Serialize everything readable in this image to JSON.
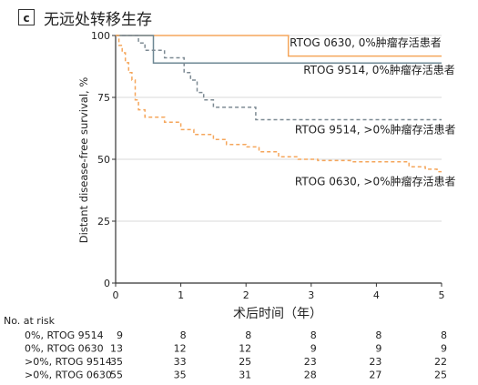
{
  "panel": {
    "letter": "c",
    "title": "无远处转移生存"
  },
  "chart_data": {
    "type": "line",
    "step": true,
    "xlabel": "术后时间（年）",
    "ylabel": "Distant disease-free survival, %",
    "xlim": [
      0,
      5
    ],
    "ylim": [
      0,
      100
    ],
    "xticks": [
      0,
      1,
      2,
      3,
      4,
      5
    ],
    "yticks": [
      0,
      25,
      50,
      75,
      100
    ],
    "series": [
      {
        "name": "RTOG 0630, 0%肿瘤存活患者",
        "color": "#f5a65b",
        "dash": "solid",
        "points": [
          [
            0,
            100
          ],
          [
            2.65,
            100
          ],
          [
            2.65,
            91.7
          ],
          [
            5,
            91.7
          ]
        ]
      },
      {
        "name": "RTOG 9514, 0%肿瘤存活患者",
        "color": "#6e8894",
        "dash": "solid",
        "points": [
          [
            0,
            100
          ],
          [
            0.58,
            100
          ],
          [
            0.58,
            88.9
          ],
          [
            5,
            88.9
          ]
        ]
      },
      {
        "name": "RTOG 9514, >0%肿瘤存活患者",
        "color": "#7d8a93",
        "dash": "dashed",
        "points": [
          [
            0,
            100
          ],
          [
            0.35,
            100
          ],
          [
            0.35,
            97
          ],
          [
            0.45,
            97
          ],
          [
            0.45,
            94
          ],
          [
            0.75,
            94
          ],
          [
            0.75,
            91
          ],
          [
            1.05,
            91
          ],
          [
            1.05,
            85
          ],
          [
            1.15,
            85
          ],
          [
            1.15,
            82
          ],
          [
            1.25,
            82
          ],
          [
            1.25,
            77
          ],
          [
            1.35,
            77
          ],
          [
            1.35,
            74
          ],
          [
            1.5,
            74
          ],
          [
            1.5,
            71
          ],
          [
            2.15,
            71
          ],
          [
            2.15,
            66
          ],
          [
            5,
            66
          ]
        ]
      },
      {
        "name": "RTOG 0630, >0%肿瘤存活患者",
        "color": "#f5a65b",
        "dash": "dashed",
        "points": [
          [
            0,
            100
          ],
          [
            0.05,
            100
          ],
          [
            0.05,
            96
          ],
          [
            0.1,
            96
          ],
          [
            0.1,
            93
          ],
          [
            0.15,
            93
          ],
          [
            0.15,
            89
          ],
          [
            0.2,
            89
          ],
          [
            0.2,
            85
          ],
          [
            0.25,
            85
          ],
          [
            0.25,
            82
          ],
          [
            0.3,
            82
          ],
          [
            0.3,
            74
          ],
          [
            0.35,
            74
          ],
          [
            0.35,
            70
          ],
          [
            0.45,
            70
          ],
          [
            0.45,
            67
          ],
          [
            0.75,
            67
          ],
          [
            0.75,
            65
          ],
          [
            1.0,
            65
          ],
          [
            1.0,
            62
          ],
          [
            1.2,
            62
          ],
          [
            1.2,
            60
          ],
          [
            1.5,
            60
          ],
          [
            1.5,
            58
          ],
          [
            1.7,
            58
          ],
          [
            1.7,
            56
          ],
          [
            2.0,
            56
          ],
          [
            2.0,
            55
          ],
          [
            2.2,
            55
          ],
          [
            2.2,
            53
          ],
          [
            2.5,
            53
          ],
          [
            2.5,
            51
          ],
          [
            2.8,
            51
          ],
          [
            2.8,
            50
          ],
          [
            3.1,
            50
          ],
          [
            3.1,
            49.5
          ],
          [
            3.6,
            49.5
          ],
          [
            3.6,
            49
          ],
          [
            4.5,
            49
          ],
          [
            4.5,
            47
          ],
          [
            4.75,
            47
          ],
          [
            4.75,
            46
          ],
          [
            4.93,
            46
          ],
          [
            4.93,
            45
          ],
          [
            5,
            45
          ]
        ]
      }
    ],
    "annotations": [
      {
        "text": "RTOG 0630, 0%肿瘤存活患者",
        "x": 2.67,
        "y": 95.5,
        "anchor": "start"
      },
      {
        "text": "RTOG 9514, 0%肿瘤存活患者",
        "x": 2.88,
        "y": 84.5,
        "anchor": "start"
      },
      {
        "text": "RTOG 9514, >0%肿瘤存活患者",
        "x": 2.75,
        "y": 60.5,
        "anchor": "start"
      },
      {
        "text": "RTOG 0630, >0%肿瘤存活患者",
        "x": 2.75,
        "y": 39.5,
        "anchor": "start"
      }
    ],
    "risk_table": {
      "title": "No. at risk",
      "rows": [
        {
          "label": "0%, RTOG 9514",
          "values": [
            9,
            8,
            8,
            8,
            8,
            8
          ]
        },
        {
          "label": "0%, RTOG 0630",
          "values": [
            13,
            12,
            12,
            9,
            9,
            9
          ]
        },
        {
          "label": ">0%, RTOG 9514",
          "values": [
            35,
            33,
            25,
            23,
            23,
            22
          ]
        },
        {
          "label": ">0%, RTOG 0630",
          "values": [
            55,
            35,
            31,
            28,
            27,
            25
          ]
        }
      ]
    }
  }
}
